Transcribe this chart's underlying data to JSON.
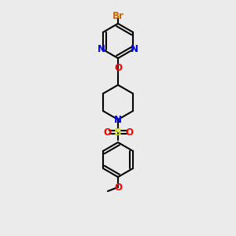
{
  "background_color": "#ebebeb",
  "bond_color": "#000000",
  "bond_width": 1.5,
  "atom_colors": {
    "Br": "#cc6600",
    "N": "#0000ff",
    "O": "#ff0000",
    "S": "#cccc00",
    "C": "#000000"
  },
  "font_size": 8.5
}
